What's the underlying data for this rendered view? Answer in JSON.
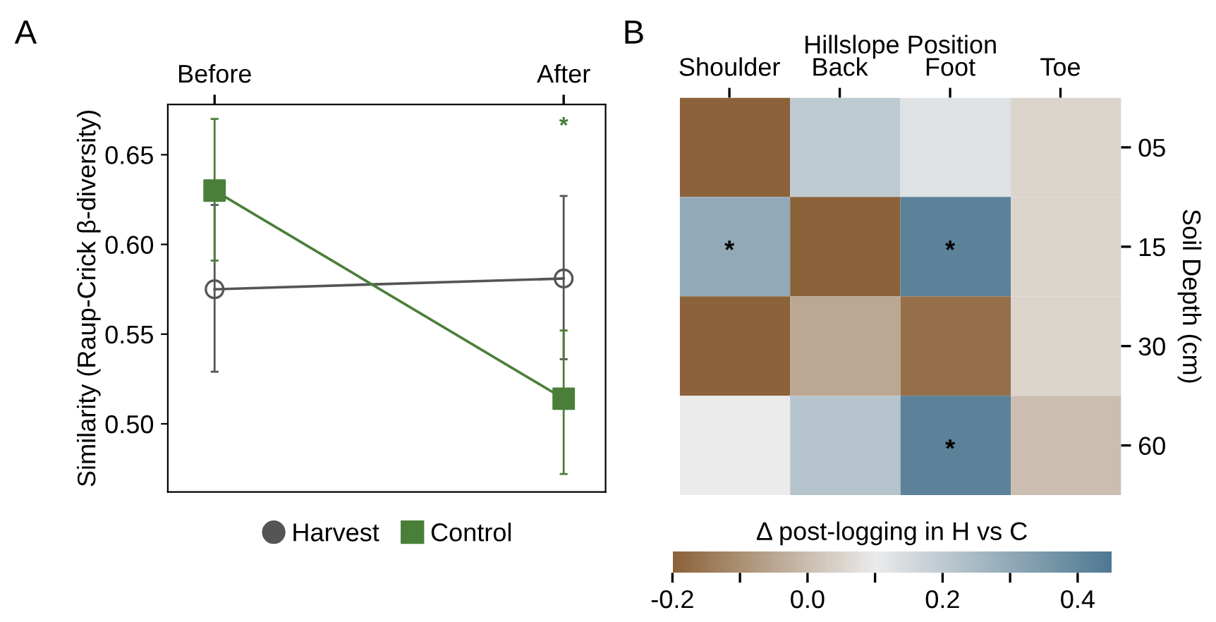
{
  "chart_data": [
    {
      "type": "line",
      "title": "A",
      "categories": [
        "Before",
        "After"
      ],
      "ylabel": "Similarity (Raup-Crick β-diversity)",
      "ylim": [
        0.462,
        0.678
      ],
      "yticks": [
        {
          "value": 0.5,
          "label": "0.50"
        },
        0.55,
        {
          "value": 0.6,
          "label": "0.60"
        },
        0.65
      ],
      "grid": false,
      "legend": "bottom",
      "series": [
        {
          "name": "Harvest",
          "color": "#555555",
          "marker": "circle",
          "values": [
            0.575,
            0.581
          ],
          "errors": [
            [
              0.529,
              0.622
            ],
            [
              0.536,
              0.627
            ]
          ]
        },
        {
          "name": "Control",
          "color": "#4a7f3a",
          "marker": "square",
          "values": [
            0.63,
            0.514
          ],
          "errors": [
            [
              0.591,
              0.67
            ],
            [
              0.472,
              0.552
            ]
          ]
        }
      ],
      "annotations": [
        "*"
      ]
    },
    {
      "type": "heatmap",
      "title": "B",
      "xlabel": "Hillslope Position",
      "ylabel": "Soil Depth (cm)",
      "clabel": "Δ post-logging in H vs C",
      "categories": [
        "Shoulder",
        "Back",
        "Foot",
        "Toe"
      ],
      "y_categories": [
        "05",
        "15",
        "30",
        "60"
      ],
      "cells": [
        [
          -0.2,
          0.2,
          0.13,
          0.05
        ],
        [
          0.3,
          -0.2,
          0.42,
          0.05
        ],
        [
          -0.2,
          -0.05,
          -0.17,
          0.05
        ],
        [
          0.1,
          0.22,
          0.42,
          0.0
        ]
      ],
      "cell_labels": [
        [
          null,
          null,
          null,
          null
        ],
        [
          "*",
          null,
          "*",
          null
        ],
        [
          null,
          null,
          null,
          null
        ],
        [
          null,
          null,
          "*",
          null
        ]
      ],
      "clim": [
        -0.2,
        0.45
      ],
      "cticks": [
        -0.2,
        {
          "value": -0.1,
          "label": null
        },
        {
          "value": 0,
          "label": "0.0"
        },
        {
          "value": 0.1,
          "label": null
        },
        0.2,
        {
          "value": 0.3,
          "label": null
        },
        0.4
      ]
    }
  ]
}
